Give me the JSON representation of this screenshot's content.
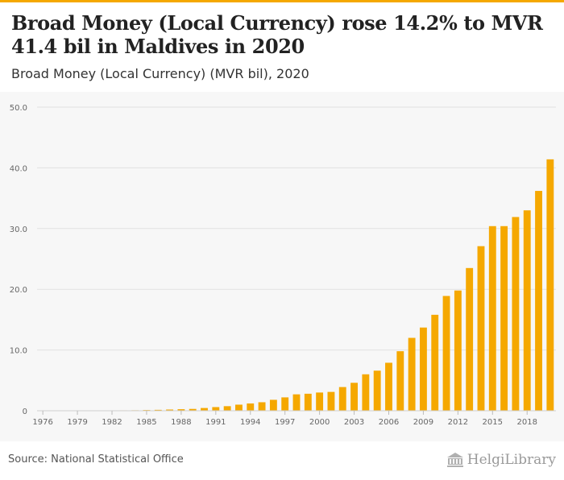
{
  "header": {
    "title": "Broad Money (Local Currency) rose 14.2% to MVR 41.4 bil in Maldives in 2020",
    "subtitle": "Broad Money (Local Currency) (MVR bil), 2020"
  },
  "footer": {
    "source": "Source: National Statistical Office",
    "brand": "HelgiLibrary"
  },
  "colors": {
    "bar": "#f5a800",
    "grid": "#e2e2e2",
    "accent": "#f5a800"
  },
  "chart_data": {
    "type": "bar",
    "title": "Broad Money (Local Currency) rose 14.2% to MVR 41.4 bil in Maldives in 2020",
    "subtitle": "Broad Money (Local Currency) (MVR bil), 2020",
    "categories": [
      "1976",
      "1977",
      "1978",
      "1979",
      "1980",
      "1981",
      "1982",
      "1983",
      "1984",
      "1985",
      "1986",
      "1987",
      "1988",
      "1989",
      "1990",
      "1991",
      "1992",
      "1993",
      "1994",
      "1995",
      "1996",
      "1997",
      "1998",
      "1999",
      "2000",
      "2001",
      "2002",
      "2003",
      "2004",
      "2005",
      "2006",
      "2007",
      "2008",
      "2009",
      "2010",
      "2011",
      "2012",
      "2013",
      "2014",
      "2015",
      "2016",
      "2017",
      "2018",
      "2019",
      "2020"
    ],
    "values": [
      0.02,
      0.02,
      0.03,
      0.03,
      0.04,
      0.05,
      0.06,
      0.07,
      0.08,
      0.12,
      0.15,
      0.2,
      0.25,
      0.3,
      0.45,
      0.6,
      0.75,
      1.0,
      1.2,
      1.4,
      1.8,
      2.2,
      2.7,
      2.8,
      3.0,
      3.1,
      3.9,
      4.6,
      6.0,
      6.6,
      7.9,
      9.8,
      12.0,
      13.7,
      15.8,
      18.9,
      19.8,
      23.5,
      27.1,
      30.4,
      30.4,
      31.9,
      33.0,
      36.2,
      41.4
    ],
    "tick_labels": [
      "1976",
      "1979",
      "1982",
      "1985",
      "1988",
      "1991",
      "1994",
      "1997",
      "2000",
      "2003",
      "2006",
      "2009",
      "2012",
      "2015",
      "2018"
    ],
    "yticks": [
      "0",
      "10.0",
      "20.0",
      "30.0",
      "40.0",
      "50.0"
    ],
    "ylim": [
      0,
      50
    ],
    "xlabel": "",
    "ylabel": "",
    "grid": true,
    "legend": false
  }
}
